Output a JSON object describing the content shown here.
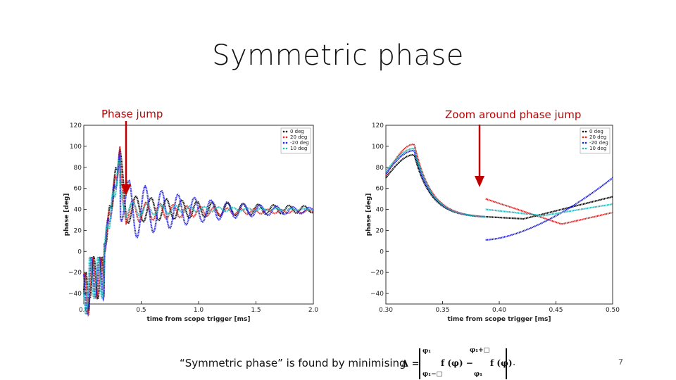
{
  "slide": {
    "title": "Symmetric phase",
    "left_label": "Phase jump",
    "right_label": "Zoom around phase jump",
    "bottom_text": "“Symmetric phase” is found by  minimising",
    "formula": {
      "delta": "Δ =",
      "top_left": "φ₁",
      "top_right": "φ₁+□",
      "mid_left": "f (φ) −",
      "mid_right": "f (φ)",
      "bottom_left": "φ₁−□",
      "bottom_right": "φ₁",
      "period": "."
    },
    "page_number": "7"
  },
  "chart_data": [
    {
      "type": "scatter",
      "title": "",
      "xlabel": "time from scope trigger [ms]",
      "ylabel": "phase [deg]",
      "xlim": [
        0.0,
        2.0
      ],
      "ylim": [
        -50,
        120
      ],
      "xticks": [
        "0.0",
        "0.5",
        "1.0",
        "1.5",
        "2.0"
      ],
      "yticks": [
        "−40",
        "−20",
        "0",
        "20",
        "40",
        "60",
        "80",
        "100",
        "120"
      ],
      "legend_position": "top-right",
      "series": [
        {
          "name": "0 deg",
          "color": "#000000",
          "params": {
            "amp": 14,
            "decay": 0.9,
            "freq": 7.5,
            "final": 40,
            "offset": 0
          }
        },
        {
          "name": "20 deg",
          "color": "#e02020",
          "params": {
            "amp": 12,
            "decay": 1.4,
            "freq": 8.5,
            "final": 38,
            "offset": 0.6
          }
        },
        {
          "name": "-20 deg",
          "color": "#2020e0",
          "params": {
            "amp": 32,
            "decay": 1.5,
            "freq": 7.0,
            "final": 39,
            "offset": 3.1
          }
        },
        {
          "name": "10 deg",
          "color": "#20b8b8",
          "params": {
            "amp": 8,
            "decay": 1.6,
            "freq": 8.0,
            "final": 40,
            "offset": 1.0
          }
        }
      ]
    },
    {
      "type": "scatter",
      "title": "",
      "xlabel": "time from scope trigger [ms]",
      "ylabel": "phase [deg]",
      "xlim": [
        0.3,
        0.5
      ],
      "ylim": [
        -50,
        120
      ],
      "xticks": [
        "0.30",
        "0.35",
        "0.40",
        "0.45",
        "0.50"
      ],
      "yticks": [
        "−40",
        "−20",
        "0",
        "20",
        "40",
        "60",
        "80",
        "100",
        "120"
      ],
      "legend_position": "top-right",
      "series": [
        {
          "name": "0 deg",
          "color": "#000000",
          "before_peak": 92,
          "after_start": 33,
          "after_end": 52
        },
        {
          "name": "20 deg",
          "color": "#e02020",
          "before_peak": 102,
          "after_start": 50,
          "after_end": 37
        },
        {
          "name": "-20 deg",
          "color": "#2020e0",
          "before_peak": 96,
          "after_start": 11,
          "after_end": 70
        },
        {
          "name": "10 deg",
          "color": "#20b8b8",
          "before_peak": 98,
          "after_start": 40,
          "after_end": 45
        }
      ]
    }
  ]
}
